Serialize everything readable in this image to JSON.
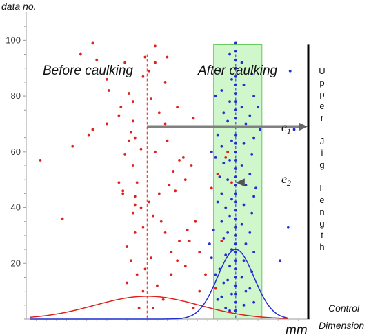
{
  "chart_data": {
    "type": "scatter",
    "title": "",
    "ylabel": "data no.",
    "xlabel": "mm",
    "ylim": [
      0,
      110
    ],
    "yticks": [
      20,
      40,
      60,
      80,
      100
    ],
    "annotations": {
      "before": "Before caulking",
      "after": "After caulking",
      "e1_base": "e",
      "e1_sub": "1",
      "e2_base": "e",
      "e2_sub": "2",
      "upper_jig_length": [
        "U",
        "p",
        "p",
        "e",
        "r",
        "",
        "J",
        "i",
        "g",
        "",
        "L",
        "e",
        "n",
        "g",
        "t",
        "h"
      ],
      "control": "Control",
      "dimension": "Dimension"
    },
    "colors": {
      "before": "#e0201a",
      "after": "#1f2fd0",
      "band": "#a8f0a0",
      "arrow": "#808080",
      "jig": "#000000"
    },
    "series": [
      {
        "name": "Before caulking",
        "mean_x": 0.0,
        "points": [
          [
            -5.3,
            57
          ],
          [
            -2.7,
            99
          ],
          [
            -3.3,
            95
          ],
          [
            -2.5,
            93
          ],
          [
            -1.1,
            92
          ],
          [
            -0.1,
            94
          ],
          [
            0.4,
            98
          ],
          [
            1.0,
            94
          ],
          [
            -2.0,
            86
          ],
          [
            -1.9,
            82
          ],
          [
            -2.7,
            68
          ],
          [
            -2.9,
            66
          ],
          [
            -3.7,
            62
          ],
          [
            -4.2,
            36
          ],
          [
            -2.0,
            70
          ],
          [
            -1.3,
            76
          ],
          [
            -1.4,
            73
          ],
          [
            -0.7,
            78
          ],
          [
            0.2,
            79
          ],
          [
            -0.2,
            87
          ],
          [
            0.1,
            89
          ],
          [
            0.4,
            92
          ],
          [
            0.9,
            85
          ],
          [
            -1.4,
            49
          ],
          [
            -1.2,
            46
          ],
          [
            -1.2,
            45
          ],
          [
            -0.9,
            64
          ],
          [
            -0.8,
            67
          ],
          [
            -0.7,
            71
          ],
          [
            -0.6,
            65
          ],
          [
            -0.3,
            61
          ],
          [
            -0.7,
            55
          ],
          [
            -1.1,
            59
          ],
          [
            -0.5,
            49
          ],
          [
            -0.6,
            44
          ],
          [
            -0.6,
            41
          ],
          [
            -0.7,
            38
          ],
          [
            -0.3,
            40
          ],
          [
            0.1,
            42
          ],
          [
            0.3,
            37
          ],
          [
            -0.2,
            33
          ],
          [
            -0.6,
            31
          ],
          [
            -1.0,
            26
          ],
          [
            -0.8,
            21
          ],
          [
            -1.0,
            13
          ],
          [
            -0.5,
            16
          ],
          [
            -0.1,
            18
          ],
          [
            0.2,
            22
          ],
          [
            0.5,
            12
          ],
          [
            -0.2,
            10
          ],
          [
            0.3,
            4
          ],
          [
            0.6,
            45
          ],
          [
            1.1,
            48
          ],
          [
            1.3,
            53
          ],
          [
            1.6,
            57
          ],
          [
            1.4,
            46
          ],
          [
            1.9,
            50
          ],
          [
            1.8,
            58
          ],
          [
            2.2,
            55
          ],
          [
            2.4,
            35
          ],
          [
            2.0,
            32
          ],
          [
            1.6,
            28
          ],
          [
            1.2,
            24
          ],
          [
            1.5,
            21
          ],
          [
            1.9,
            19
          ],
          [
            2.1,
            28
          ],
          [
            2.6,
            24
          ],
          [
            0.9,
            31
          ],
          [
            0.7,
            35
          ],
          [
            0.4,
            60
          ],
          [
            0.9,
            70
          ],
          [
            0.6,
            74
          ],
          [
            1.5,
            76
          ],
          [
            2.3,
            72
          ],
          [
            3.2,
            47
          ],
          [
            3.5,
            52
          ],
          [
            3.9,
            58
          ],
          [
            4.0,
            60
          ],
          [
            3.7,
            28
          ],
          [
            2.9,
            16
          ],
          [
            3.4,
            11
          ],
          [
            2.6,
            10
          ],
          [
            -0.9,
            81
          ],
          [
            1.0,
            64
          ],
          [
            0.8,
            7
          ],
          [
            2.3,
            4
          ],
          [
            4.2,
            49
          ],
          [
            1.2,
            16
          ],
          [
            -0.4,
            4
          ]
        ]
      },
      {
        "name": "After caulking",
        "mean_x": 4.4,
        "points": [
          [
            4.4,
            99
          ],
          [
            4.4,
            96
          ],
          [
            4.4,
            93
          ],
          [
            4.4,
            90
          ],
          [
            4.4,
            87
          ],
          [
            4.4,
            84
          ],
          [
            4.4,
            81
          ],
          [
            4.4,
            78
          ],
          [
            4.4,
            75
          ],
          [
            4.4,
            72
          ],
          [
            4.4,
            69
          ],
          [
            4.4,
            66
          ],
          [
            4.4,
            63
          ],
          [
            4.4,
            60
          ],
          [
            4.4,
            57
          ],
          [
            4.4,
            54
          ],
          [
            4.4,
            51
          ],
          [
            4.4,
            48
          ],
          [
            4.4,
            45
          ],
          [
            4.4,
            42
          ],
          [
            4.4,
            39
          ],
          [
            4.4,
            36
          ],
          [
            4.4,
            33
          ],
          [
            4.4,
            30
          ],
          [
            4.4,
            27
          ],
          [
            4.4,
            24
          ],
          [
            4.4,
            21
          ],
          [
            4.4,
            18
          ],
          [
            4.4,
            15
          ],
          [
            4.4,
            12
          ],
          [
            4.4,
            9
          ],
          [
            4.4,
            6
          ],
          [
            4.4,
            3
          ],
          [
            3.6,
            89
          ],
          [
            3.7,
            82
          ],
          [
            3.8,
            74
          ],
          [
            3.9,
            69
          ],
          [
            3.7,
            62
          ],
          [
            3.8,
            56
          ],
          [
            3.6,
            51
          ],
          [
            3.7,
            45
          ],
          [
            3.9,
            40
          ],
          [
            3.7,
            35
          ],
          [
            3.8,
            29
          ],
          [
            3.9,
            23
          ],
          [
            3.6,
            18
          ],
          [
            3.8,
            13
          ],
          [
            3.7,
            8
          ],
          [
            3.9,
            4
          ],
          [
            4.1,
            95
          ],
          [
            4.2,
            86
          ],
          [
            4.1,
            78
          ],
          [
            4.0,
            71
          ],
          [
            4.2,
            64
          ],
          [
            4.1,
            57
          ],
          [
            4.0,
            50
          ],
          [
            4.2,
            43
          ],
          [
            4.1,
            37
          ],
          [
            4.0,
            31
          ],
          [
            4.2,
            25
          ],
          [
            4.1,
            19
          ],
          [
            4.0,
            14
          ],
          [
            4.2,
            9
          ],
          [
            4.1,
            3
          ],
          [
            4.7,
            92
          ],
          [
            4.8,
            84
          ],
          [
            4.7,
            76
          ],
          [
            4.9,
            70
          ],
          [
            4.8,
            63
          ],
          [
            4.7,
            55
          ],
          [
            4.9,
            48
          ],
          [
            4.8,
            41
          ],
          [
            4.7,
            34
          ],
          [
            4.9,
            27
          ],
          [
            4.8,
            21
          ],
          [
            4.7,
            15
          ],
          [
            4.9,
            10
          ],
          [
            4.8,
            5
          ],
          [
            5.2,
            88
          ],
          [
            5.3,
            80
          ],
          [
            5.1,
            73
          ],
          [
            5.3,
            65
          ],
          [
            5.2,
            59
          ],
          [
            5.1,
            52
          ],
          [
            5.3,
            44
          ],
          [
            5.2,
            38
          ],
          [
            5.1,
            31
          ],
          [
            5.3,
            24
          ],
          [
            5.2,
            17
          ],
          [
            5.1,
            11
          ],
          [
            5.3,
            6
          ],
          [
            5.5,
            76
          ],
          [
            5.6,
            68
          ],
          [
            5.4,
            47
          ],
          [
            3.4,
            80
          ],
          [
            3.5,
            66
          ],
          [
            3.4,
            58
          ],
          [
            3.5,
            42
          ],
          [
            3.3,
            32
          ],
          [
            3.4,
            16
          ],
          [
            3.5,
            7
          ],
          [
            3.2,
            60
          ],
          [
            7.1,
            89
          ],
          [
            7.3,
            68
          ],
          [
            7.0,
            33
          ],
          [
            6.6,
            21
          ],
          [
            3.1,
            27
          ],
          [
            3.2,
            22
          ]
        ]
      }
    ],
    "distributions": [
      {
        "name": "Before caulking",
        "mean": 0.0,
        "sd": 2.6,
        "peak": 8.2
      },
      {
        "name": "After caulking",
        "mean": 4.4,
        "sd": 0.9,
        "peak": 25.0
      }
    ],
    "band_x": [
      3.3,
      5.7
    ],
    "e1_y": 69,
    "e2_y": 49
  }
}
